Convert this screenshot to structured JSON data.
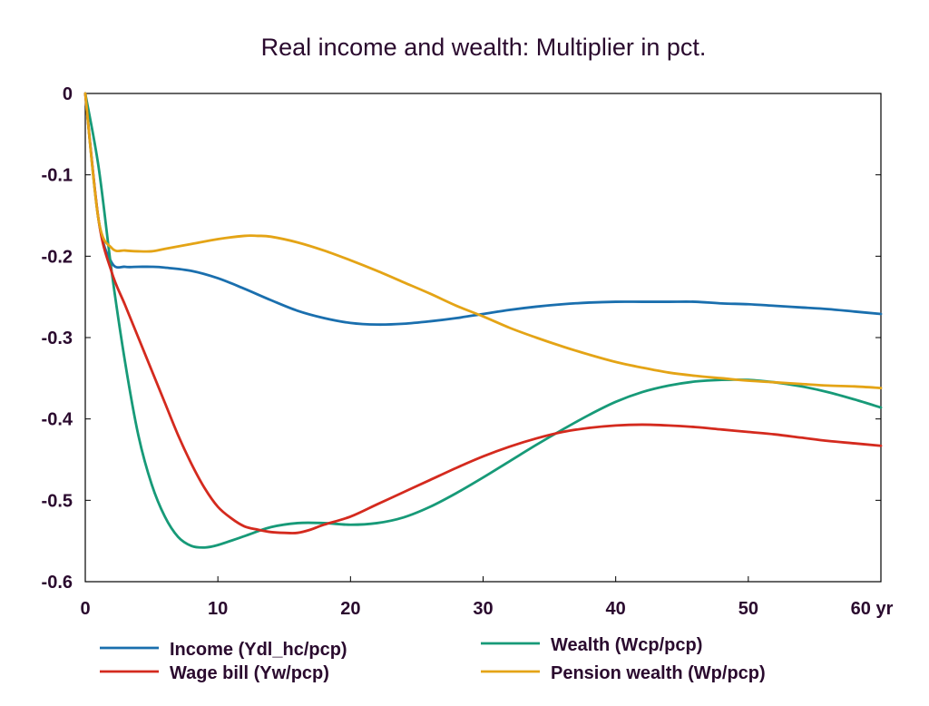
{
  "chart_data": {
    "type": "line",
    "title": "Real income and wealth: Multiplier in pct.",
    "xlabel": "",
    "ylabel": "",
    "xlim": [
      0,
      60
    ],
    "ylim": [
      -0.6,
      0
    ],
    "x_ticks": [
      "0",
      "10",
      "20",
      "30",
      "40",
      "50",
      "60 yr"
    ],
    "x_tick_values": [
      0,
      10,
      20,
      30,
      40,
      50,
      60
    ],
    "y_ticks": [
      "0",
      "-0.1",
      "-0.2",
      "-0.3",
      "-0.4",
      "-0.5",
      "-0.6"
    ],
    "y_tick_values": [
      0,
      -0.1,
      -0.2,
      -0.3,
      -0.4,
      -0.5,
      -0.6
    ],
    "grid": false,
    "legend_position": "bottom",
    "series": [
      {
        "name": "Income (Ydl_hc/pcp)",
        "color": "#1a6fae",
        "x": [
          0,
          1,
          2,
          3,
          4,
          5,
          6,
          8,
          10,
          12,
          14,
          16,
          18,
          20,
          22,
          24,
          26,
          28,
          30,
          32,
          34,
          36,
          38,
          40,
          42,
          44,
          46,
          48,
          50,
          52,
          54,
          56,
          58,
          60
        ],
        "y": [
          0,
          -0.155,
          -0.208,
          -0.213,
          -0.213,
          -0.213,
          -0.214,
          -0.218,
          -0.227,
          -0.24,
          -0.254,
          -0.267,
          -0.276,
          -0.282,
          -0.284,
          -0.283,
          -0.28,
          -0.276,
          -0.271,
          -0.266,
          -0.262,
          -0.259,
          -0.257,
          -0.256,
          -0.256,
          -0.256,
          -0.256,
          -0.258,
          -0.259,
          -0.261,
          -0.263,
          -0.265,
          -0.268,
          -0.271
        ]
      },
      {
        "name": "Wealth (Wcp/pcp)",
        "color": "#179a78",
        "x": [
          0,
          1,
          2,
          3,
          4,
          5,
          6,
          7,
          8,
          9,
          10,
          12,
          14,
          16,
          18,
          20,
          22,
          24,
          26,
          28,
          30,
          32,
          34,
          36,
          38,
          40,
          42,
          44,
          46,
          48,
          50,
          52,
          54,
          56,
          58,
          60
        ],
        "y": [
          0,
          -0.09,
          -0.22,
          -0.33,
          -0.42,
          -0.48,
          -0.52,
          -0.545,
          -0.556,
          -0.558,
          -0.555,
          -0.544,
          -0.533,
          -0.528,
          -0.528,
          -0.53,
          -0.528,
          -0.521,
          -0.508,
          -0.491,
          -0.472,
          -0.452,
          -0.432,
          -0.413,
          -0.395,
          -0.379,
          -0.367,
          -0.359,
          -0.354,
          -0.352,
          -0.352,
          -0.355,
          -0.36,
          -0.367,
          -0.376,
          -0.386
        ]
      },
      {
        "name": "Wage bill (Yw/pcp)",
        "color": "#d42a1e",
        "x": [
          0,
          1,
          2,
          3,
          4,
          5,
          6,
          7,
          8,
          9,
          10,
          11,
          12,
          13,
          14,
          15,
          16,
          17,
          18,
          20,
          22,
          24,
          26,
          28,
          30,
          32,
          34,
          36,
          38,
          40,
          42,
          44,
          46,
          48,
          50,
          52,
          54,
          56,
          58,
          60
        ],
        "y": [
          0,
          -0.155,
          -0.22,
          -0.26,
          -0.3,
          -0.34,
          -0.38,
          -0.42,
          -0.455,
          -0.485,
          -0.508,
          -0.522,
          -0.532,
          -0.536,
          -0.539,
          -0.54,
          -0.54,
          -0.536,
          -0.53,
          -0.52,
          -0.505,
          -0.49,
          -0.475,
          -0.46,
          -0.446,
          -0.434,
          -0.424,
          -0.416,
          -0.411,
          -0.408,
          -0.407,
          -0.408,
          -0.41,
          -0.413,
          -0.416,
          -0.419,
          -0.423,
          -0.427,
          -0.43,
          -0.433
        ]
      },
      {
        "name": "Pension wealth (Wp/pcp)",
        "color": "#e4a416",
        "x": [
          0,
          1,
          2,
          3,
          4,
          5,
          6,
          8,
          10,
          12,
          13,
          14,
          16,
          18,
          20,
          22,
          24,
          26,
          28,
          30,
          32,
          34,
          36,
          38,
          40,
          42,
          44,
          46,
          48,
          50,
          52,
          54,
          56,
          58,
          60
        ],
        "y": [
          0,
          -0.155,
          -0.19,
          -0.193,
          -0.194,
          -0.194,
          -0.191,
          -0.185,
          -0.179,
          -0.175,
          -0.175,
          -0.176,
          -0.183,
          -0.193,
          -0.205,
          -0.218,
          -0.232,
          -0.246,
          -0.261,
          -0.274,
          -0.288,
          -0.3,
          -0.311,
          -0.321,
          -0.33,
          -0.337,
          -0.343,
          -0.347,
          -0.35,
          -0.353,
          -0.355,
          -0.357,
          -0.359,
          -0.36,
          -0.362
        ]
      }
    ]
  }
}
